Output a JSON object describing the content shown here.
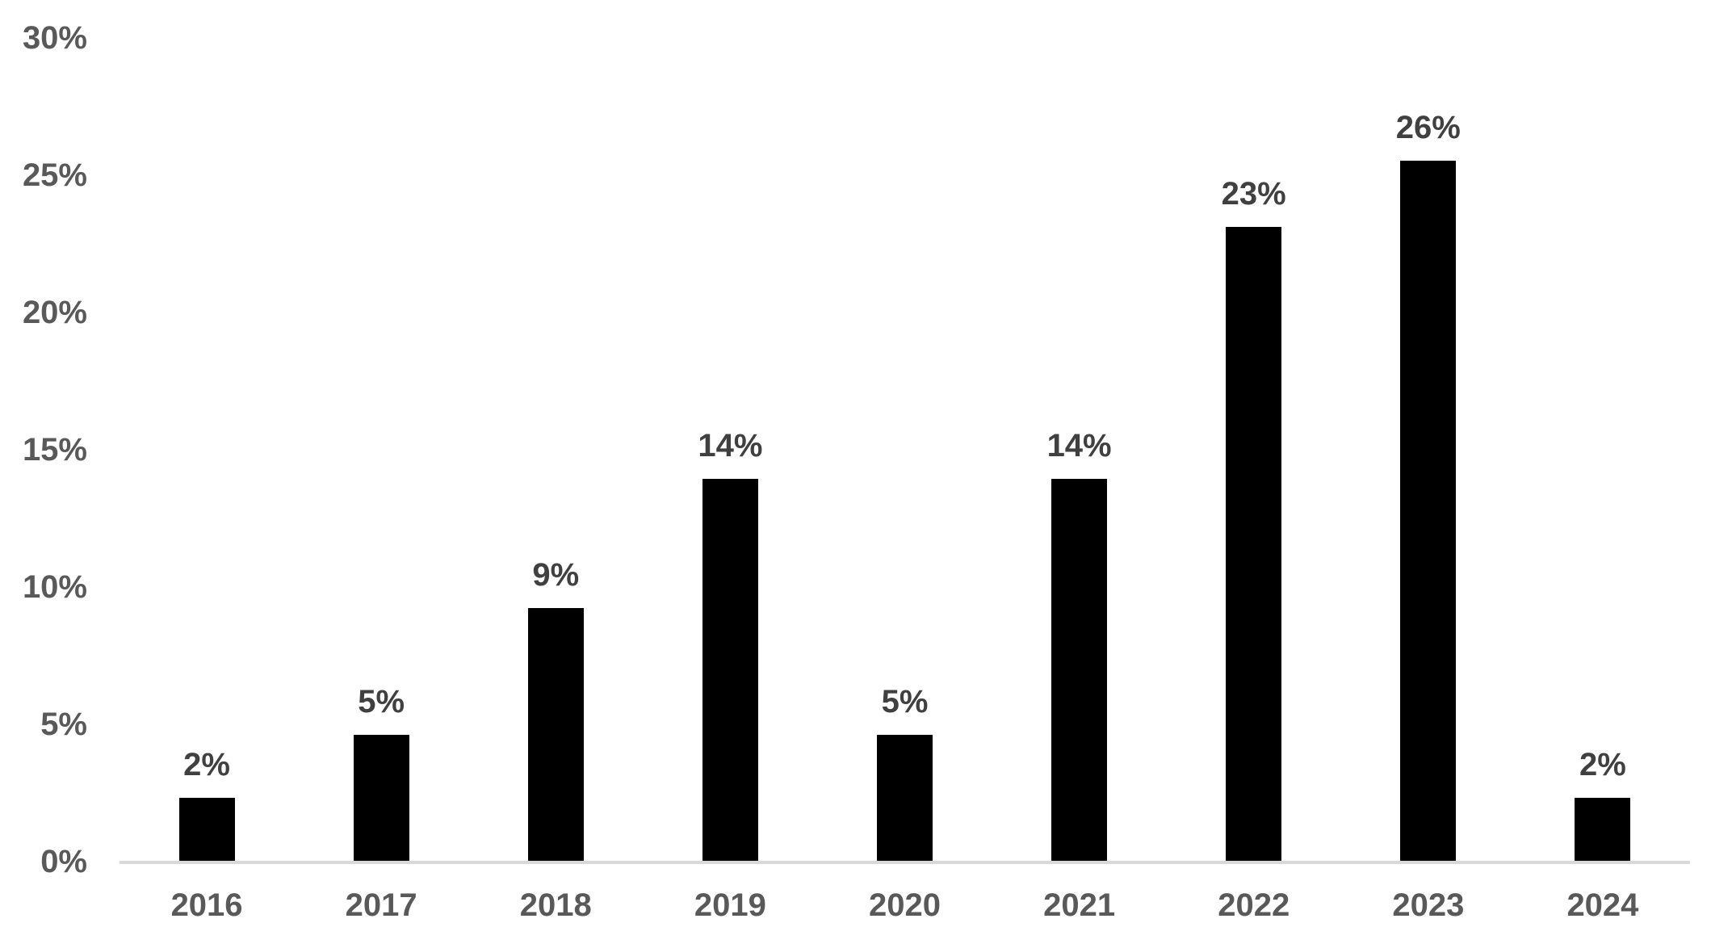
{
  "colors": {
    "background": "#ffffff",
    "bar": "#000000",
    "axis_line": "#d9d9d9",
    "ytick_label": "#595959",
    "xtick_label": "#595959",
    "data_label": "#404040"
  },
  "chart_data": {
    "type": "bar",
    "title": "",
    "xlabel": "",
    "ylabel": "",
    "categories": [
      "2016",
      "2017",
      "2018",
      "2019",
      "2020",
      "2021",
      "2022",
      "2023",
      "2024"
    ],
    "values": [
      2.3,
      4.6,
      9.2,
      13.9,
      4.6,
      13.9,
      23.1,
      25.5,
      2.3
    ],
    "data_labels": [
      "2%",
      "5%",
      "9%",
      "14%",
      "5%",
      "14%",
      "23%",
      "26%",
      "2%"
    ],
    "ylim": [
      0,
      30
    ],
    "ytick_step": 5,
    "ytick_labels": [
      "0%",
      "5%",
      "10%",
      "15%",
      "20%",
      "25%",
      "30%"
    ],
    "grid": false,
    "legend": "none"
  }
}
